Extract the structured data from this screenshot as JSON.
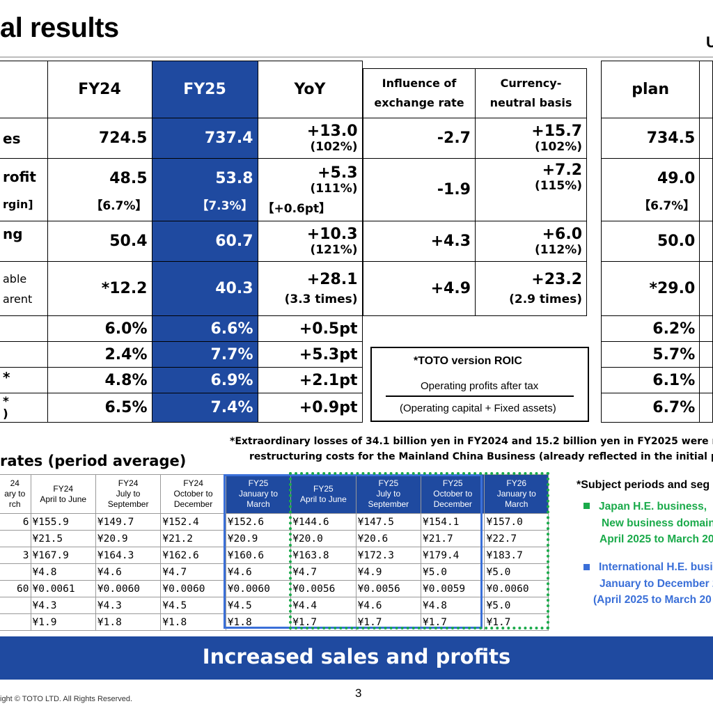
{
  "title": "al results",
  "corner_text": "U",
  "main_table": {
    "headers": {
      "fy24": "FY24",
      "fy25": "FY25",
      "yoy": "YoY",
      "influence": "Influence of exchange rate",
      "currency_neutral": "Currency-neutral basis",
      "plan": "plan"
    },
    "rows": [
      {
        "label": "es",
        "fy24": "724.5",
        "fy25": "737.4",
        "yoy": "+13.0",
        "yoy_sub": "(102%)",
        "influence": "-2.7",
        "cn": "+15.7",
        "cn_sub": "(102%)",
        "plan": "734.5"
      },
      {
        "label": "rofit",
        "label2": "rgin]",
        "fy24": "48.5",
        "fy24_sub": "【6.7%】",
        "fy25": "53.8",
        "fy25_sub": "【7.3%】",
        "yoy": "+5.3",
        "yoy_sub": "(111%)",
        "yoy_sub2": "【+0.6pt】",
        "influence": "-1.9",
        "cn": "+7.2",
        "cn_sub": "(115%)",
        "plan": "49.0",
        "plan_sub": "【6.7%】"
      },
      {
        "label": "ng",
        "fy24": "50.4",
        "fy25": "60.7",
        "yoy": "+10.3",
        "yoy_sub": "(121%)",
        "influence": "+4.3",
        "cn": "+6.0",
        "cn_sub": "(112%)",
        "plan": "50.0"
      },
      {
        "label": "able",
        "label2": "arent",
        "fy24": "*12.2",
        "fy25": "40.3",
        "yoy": "+28.1",
        "yoy_sub": "(3.3 times)",
        "influence": "+4.9",
        "cn": "+23.2",
        "cn_sub": "(2.9 times)",
        "plan": "*29.0"
      },
      {
        "label": "",
        "fy24": "6.0%",
        "fy25": "6.6%",
        "yoy": "+0.5pt",
        "plan": "6.2%"
      },
      {
        "label": "",
        "fy24": "2.4%",
        "fy25": "7.7%",
        "yoy": "+5.3pt",
        "plan": "5.7%"
      },
      {
        "label": "*",
        "fy24": "4.8%",
        "fy25": "6.9%",
        "yoy": "+2.1pt",
        "plan": "6.1%"
      },
      {
        "label": "*",
        "label2": ")",
        "fy24": "6.5%",
        "fy25": "7.4%",
        "yoy": "+0.9pt",
        "plan": "6.7%"
      }
    ]
  },
  "roic": {
    "title": "*TOTO version ROIC",
    "numerator": "Operating profits after tax",
    "denominator": "(Operating capital + Fixed assets)"
  },
  "footnote": {
    "line1": "*Extraordinary losses of 34.1 billion yen in FY2024 and 15.2 billion yen in FY2025 were re",
    "line2": "restructuring costs for the Mainland China Business (already reflected in the initial pla"
  },
  "rates": {
    "title": "rates (period average)",
    "columns": [
      {
        "l1": "24",
        "l2": "ary to",
        "l3": "rch"
      },
      {
        "l1": "FY24",
        "l2": "April to June",
        "l3": ""
      },
      {
        "l1": "FY24",
        "l2": "July to",
        "l3": "September"
      },
      {
        "l1": "FY24",
        "l2": "October to",
        "l3": "December"
      },
      {
        "l1": "FY25",
        "l2": "January to",
        "l3": "March"
      },
      {
        "l1": "FY25",
        "l2": "April to June",
        "l3": ""
      },
      {
        "l1": "FY25",
        "l2": "July to",
        "l3": "September"
      },
      {
        "l1": "FY25",
        "l2": "October to",
        "l3": "December"
      },
      {
        "l1": "FY26",
        "l2": "January to",
        "l3": "March"
      }
    ],
    "rows": [
      [
        "6",
        "¥155.9",
        "¥149.7",
        "¥152.4",
        "¥152.6",
        "¥144.6",
        "¥147.5",
        "¥154.1",
        "¥157.0"
      ],
      [
        "",
        "¥21.5",
        "¥20.9",
        "¥21.2",
        "¥20.9",
        "¥20.0",
        "¥20.6",
        "¥21.7",
        "¥22.7"
      ],
      [
        "3",
        "¥167.9",
        "¥164.3",
        "¥162.6",
        "¥160.6",
        "¥163.8",
        "¥172.3",
        "¥179.4",
        "¥183.7"
      ],
      [
        "",
        "¥4.8",
        "¥4.6",
        "¥4.7",
        "¥4.6",
        "¥4.7",
        "¥4.9",
        "¥5.0",
        "¥5.0"
      ],
      [
        "60",
        "¥0.0061",
        "¥0.0060",
        "¥0.0060",
        "¥0.0060",
        "¥0.0056",
        "¥0.0056",
        "¥0.0059",
        "¥0.0060"
      ],
      [
        "",
        "¥4.3",
        "¥4.3",
        "¥4.5",
        "¥4.5",
        "¥4.4",
        "¥4.6",
        "¥4.8",
        "¥5.0"
      ],
      [
        "",
        "¥1.9",
        "¥1.8",
        "¥1.8",
        "¥1.8",
        "¥1.7",
        "¥1.7",
        "¥1.7",
        "¥1.7"
      ]
    ]
  },
  "subject": {
    "title": "*Subject periods and seg",
    "japan": {
      "l1": "Japan H.E. business,",
      "l2": "New business domain",
      "l3": "April 2025 to March 20"
    },
    "intl": {
      "l1": "International H.E. busi",
      "l2": "January to December 2",
      "l3": "(April 2025 to March 20"
    }
  },
  "banner": "Increased sales and profits",
  "page_number": "3",
  "copyright": "ight © TOTO LTD. All Rights Reserved.",
  "colors": {
    "fy25_blue": "#1f4aa0",
    "green": "#1aaa4a",
    "frame_blue": "#3a6fd8"
  }
}
